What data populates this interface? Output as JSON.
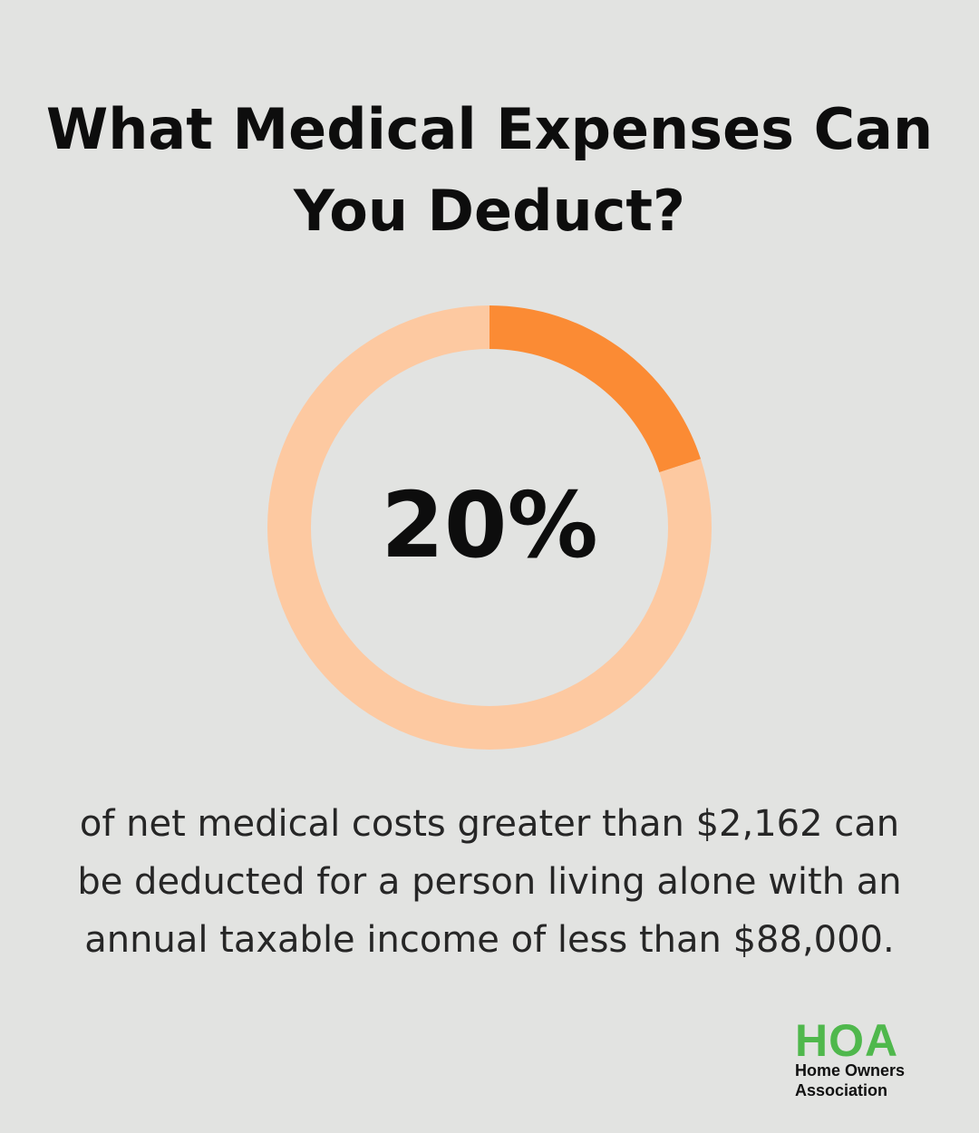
{
  "title": {
    "line1": "What Medical Expenses Can",
    "line2": "You Deduct?"
  },
  "chart_data": {
    "type": "pie",
    "variant": "donut",
    "values": [
      20,
      80
    ],
    "unit": "%",
    "center_label": "20%",
    "colors": {
      "highlight": "#fb8b34",
      "remainder": "#fdc9a1"
    }
  },
  "caption": {
    "line1": "of net medical costs greater than $2,162 can",
    "line2": "be deducted for a person living alone with an",
    "line3": "annual taxable income of less than $88,000."
  },
  "logo": {
    "mark": "HOA",
    "line1": "Home Owners",
    "line2": "Association"
  },
  "colors": {
    "background": "#e2e3e1",
    "text": "#0d0d0d",
    "logo_green": "#4fb84c"
  }
}
